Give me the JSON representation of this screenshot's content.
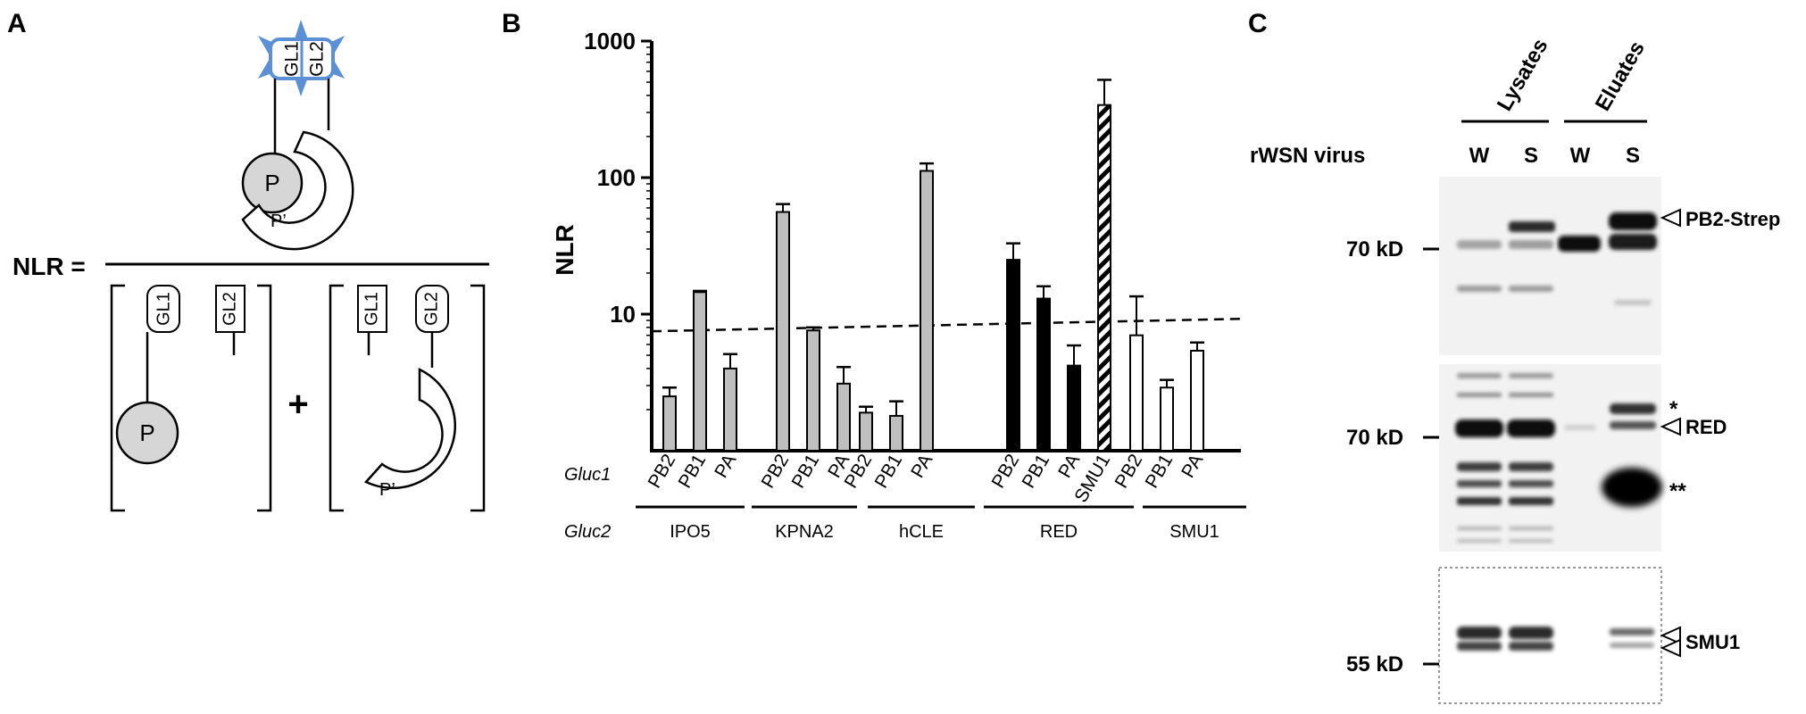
{
  "panels": {
    "a": "A",
    "b": "B",
    "c": "C"
  },
  "schematic": {
    "nlr_label": "NLR =",
    "gl1": "GL1",
    "gl2": "GL2",
    "p": "P",
    "p_prime": "P’",
    "plus": "+"
  },
  "colors": {
    "grey_bar": "#bfbfbf",
    "black_bar": "#000000",
    "white_bar": "#ffffff",
    "luciferase_blue": "#5b8fd6",
    "blot_bg": "#f2f2f2"
  },
  "chart_data": {
    "type": "bar",
    "ylabel": "NLR",
    "yscale": "log",
    "ylim": [
      1,
      1000
    ],
    "yticks": [
      "10",
      "100",
      "1000"
    ],
    "threshold": 8.2,
    "row1_label": "Gluc1",
    "row2_label": "Gluc2",
    "groups": [
      {
        "name": "IPO5",
        "bars": [
          {
            "label": "PB2",
            "value": 2.5,
            "err": 0.4,
            "fill": "grey"
          },
          {
            "label": "PB1",
            "value": 14.5,
            "err": 0.3,
            "fill": "grey"
          },
          {
            "label": "PA",
            "value": 4.0,
            "err": 1.1,
            "fill": "grey"
          }
        ]
      },
      {
        "name": "KPNA2",
        "bars": [
          {
            "label": "PB2",
            "value": 56,
            "err": 8,
            "fill": "grey"
          },
          {
            "label": "PB1",
            "value": 7.6,
            "err": 0.4,
            "fill": "grey"
          },
          {
            "label": "PA",
            "value": 3.1,
            "err": 1.0,
            "fill": "grey"
          }
        ]
      },
      {
        "name": "hCLE",
        "bars": [
          {
            "label": "PB2",
            "value": 1.9,
            "err": 0.2,
            "fill": "grey"
          },
          {
            "label": "PB1",
            "value": 1.8,
            "err": 0.5,
            "fill": "grey"
          },
          {
            "label": "PA",
            "value": 112,
            "err": 15,
            "fill": "grey"
          }
        ]
      },
      {
        "name": "RED",
        "bars": [
          {
            "label": "PB2",
            "value": 25,
            "err": 8,
            "fill": "black"
          },
          {
            "label": "PB1",
            "value": 13,
            "err": 3,
            "fill": "black"
          },
          {
            "label": "PA",
            "value": 4.2,
            "err": 1.7,
            "fill": "black"
          },
          {
            "label": "SMU1",
            "value": 340,
            "err": 180,
            "fill": "hatched"
          }
        ]
      },
      {
        "name": "SMU1",
        "bars": [
          {
            "label": "PB2",
            "value": 7.0,
            "err": 6.5,
            "fill": "white"
          },
          {
            "label": "PB1",
            "value": 2.9,
            "err": 0.4,
            "fill": "white"
          },
          {
            "label": "PA",
            "value": 5.4,
            "err": 0.8,
            "fill": "white"
          }
        ]
      }
    ]
  },
  "blot": {
    "header_lysates": "Lysates",
    "header_eluates": "Eluates",
    "virus_label": "rWSN virus",
    "lanes": [
      "W",
      "S",
      "W",
      "S"
    ],
    "markers": [
      "70 kD",
      "70 kD",
      "55 kD"
    ],
    "labels": {
      "pb2": "PB2-Strep",
      "star1": "*",
      "red": "RED",
      "star2": "**",
      "smu1": "SMU1"
    }
  }
}
